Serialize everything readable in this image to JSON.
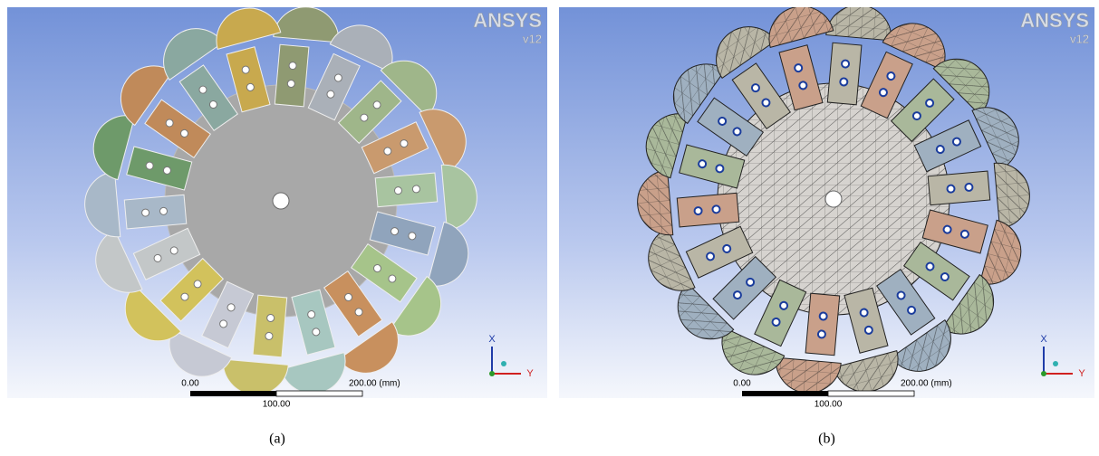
{
  "panels": [
    {
      "logo": "ANSYS",
      "version": "v12",
      "scale": {
        "start": "0.00",
        "end": "200.00 (mm)",
        "mid": "100.00"
      },
      "axes": {
        "x": "X",
        "y": "Y"
      },
      "caption": "(a)"
    },
    {
      "logo": "ANSYS",
      "version": "v12",
      "scale": {
        "start": "0.00",
        "end": "200.00 (mm)",
        "mid": "100.00"
      },
      "axes": {
        "x": "X",
        "y": "Y"
      },
      "caption": "(b)"
    }
  ]
}
